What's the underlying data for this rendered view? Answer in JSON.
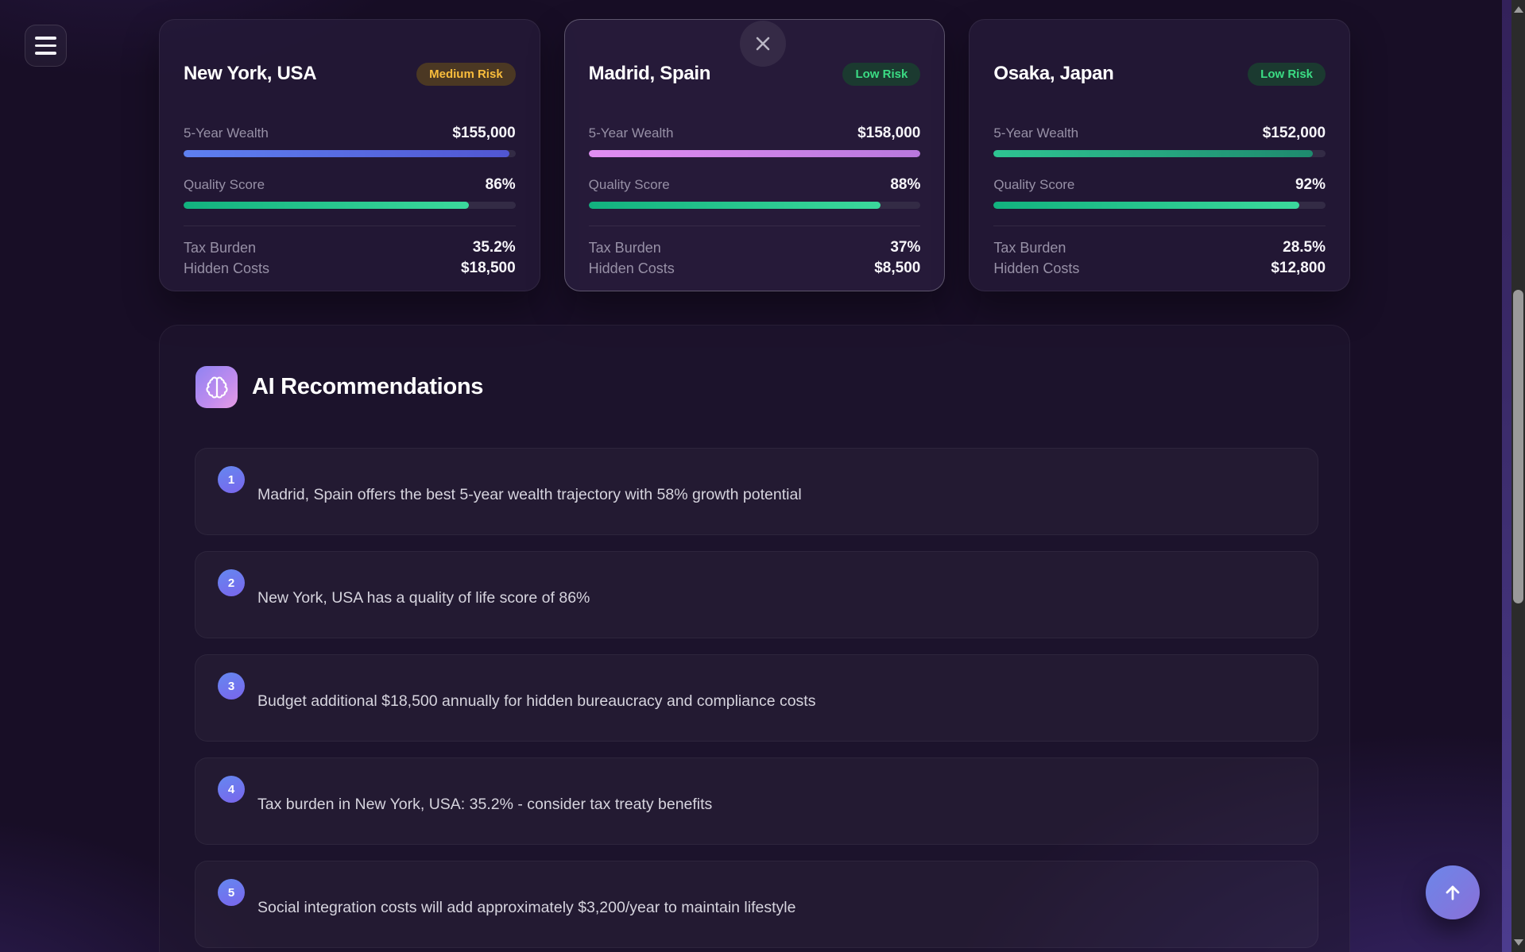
{
  "toolbar": {
    "menu_icon": "hamburger-menu"
  },
  "close_button": {
    "icon": "close-x"
  },
  "labels": {
    "wealth": "5-Year Wealth",
    "quality": "Quality Score",
    "tax": "Tax Burden",
    "hidden": "Hidden Costs"
  },
  "cities": [
    {
      "name": "New York, USA",
      "risk_label": "Medium Risk",
      "risk_class": "medium",
      "wealth_value": "$155,000",
      "wealth_pct": 98.1,
      "wealth_from": "#5e80f0",
      "wealth_to": "#5156d2",
      "quality_value": "86%",
      "quality_pct": 86,
      "tax_value": "35.2%",
      "hidden_value": "$18,500",
      "selected": false
    },
    {
      "name": "Madrid, Spain",
      "risk_label": "Low Risk",
      "risk_class": "low",
      "wealth_value": "$158,000",
      "wealth_pct": 100,
      "wealth_from": "#e18ef2",
      "wealth_to": "#b878dd",
      "quality_value": "88%",
      "quality_pct": 88,
      "tax_value": "37%",
      "hidden_value": "$8,500",
      "selected": true
    },
    {
      "name": "Osaka, Japan",
      "risk_label": "Low Risk",
      "risk_class": "low",
      "wealth_value": "$152,000",
      "wealth_pct": 96.2,
      "wealth_from": "#2ec492",
      "wealth_to": "#1e8a6e",
      "quality_value": "92%",
      "quality_pct": 92,
      "tax_value": "28.5%",
      "hidden_value": "$12,800",
      "selected": false
    }
  ],
  "recommendations": {
    "title": "AI Recommendations",
    "icon": "brain",
    "items": [
      {
        "number": "1",
        "text": "Madrid, Spain offers the best 5-year wealth trajectory with 58% growth potential"
      },
      {
        "number": "2",
        "text": "New York, USA has a quality of life score of 86%"
      },
      {
        "number": "3",
        "text": "Budget additional $18,500 annually for hidden bureaucracy and compliance costs"
      },
      {
        "number": "4",
        "text": "Tax burden in New York, USA: 35.2% - consider tax treaty benefits"
      },
      {
        "number": "5",
        "text": "Social integration costs will add approximately $3,200/year to maintain lifestyle"
      }
    ]
  },
  "scroll_top": {
    "icon": "arrow-up"
  },
  "colors": {
    "quality_from": "#12b27f",
    "quality_to": "#3bd89c",
    "badge_medium_text": "#f9bd3c",
    "badge_low_text": "#3bdc84",
    "accent_gradient_from": "#8f83f2",
    "accent_gradient_to": "#e79ce4",
    "number_badge_from": "#6488f0",
    "number_badge_to": "#7a65ec"
  }
}
